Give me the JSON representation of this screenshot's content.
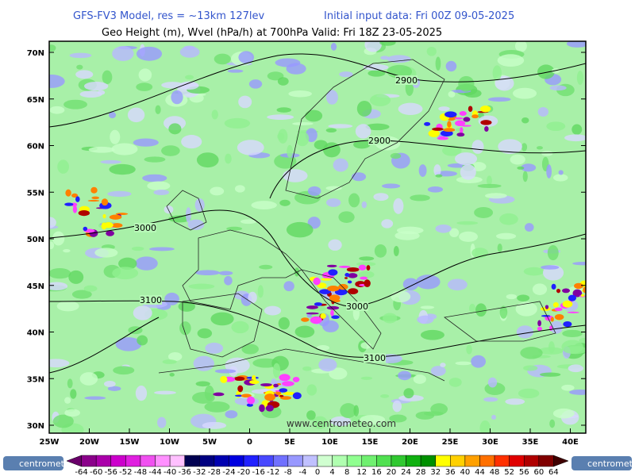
{
  "header": {
    "model": "GFS-FV3 Model, res = ~13km 127lev",
    "init": "Initial input data: Fri 00Z 09-05-2025",
    "subtitle": "Geo Height (m), Wvel (hPa/h) at 700hPa  Valid: Fri 18Z 23-05-2025"
  },
  "map": {
    "lat_labels": [
      "70N",
      "65N",
      "60N",
      "55N",
      "50N",
      "45N",
      "40N",
      "35N",
      "30N"
    ],
    "lon_labels": [
      "25W",
      "20W",
      "15W",
      "10W",
      "5W",
      "0",
      "5E",
      "10E",
      "15E",
      "20E",
      "25E",
      "30E",
      "35E",
      "40E"
    ],
    "contour_labels": [
      2900,
      2900,
      3000,
      3000,
      3100,
      3100
    ],
    "watermark": "www.centrometeo.com"
  },
  "colorbar": {
    "ticks": [
      -64,
      -60,
      -56,
      -52,
      -48,
      -44,
      -40,
      -36,
      -32,
      -28,
      -24,
      -20,
      -16,
      -12,
      -8,
      -4,
      0,
      4,
      8,
      12,
      16,
      20,
      24,
      28,
      32,
      36,
      40,
      44,
      48,
      52,
      56,
      60,
      64
    ],
    "colors": [
      "#6a006a",
      "#8a008a",
      "#aa00aa",
      "#cc00cc",
      "#e020e0",
      "#f050f0",
      "#ff90ff",
      "#ffc0ff",
      "#000050",
      "#000080",
      "#0000b0",
      "#0000e0",
      "#2020ff",
      "#4848ff",
      "#7070ff",
      "#9898ff",
      "#c0c0ff",
      "#d0ffd0",
      "#b0ffb0",
      "#90ff90",
      "#70f070",
      "#50e050",
      "#30c830",
      "#10b010",
      "#009000",
      "#ffff00",
      "#ffd000",
      "#ffa000",
      "#ff7000",
      "#ff3000",
      "#e00000",
      "#b00000",
      "#800000",
      "#400000"
    ]
  },
  "logos": [
    "centrometeo",
    "centrometeo"
  ]
}
